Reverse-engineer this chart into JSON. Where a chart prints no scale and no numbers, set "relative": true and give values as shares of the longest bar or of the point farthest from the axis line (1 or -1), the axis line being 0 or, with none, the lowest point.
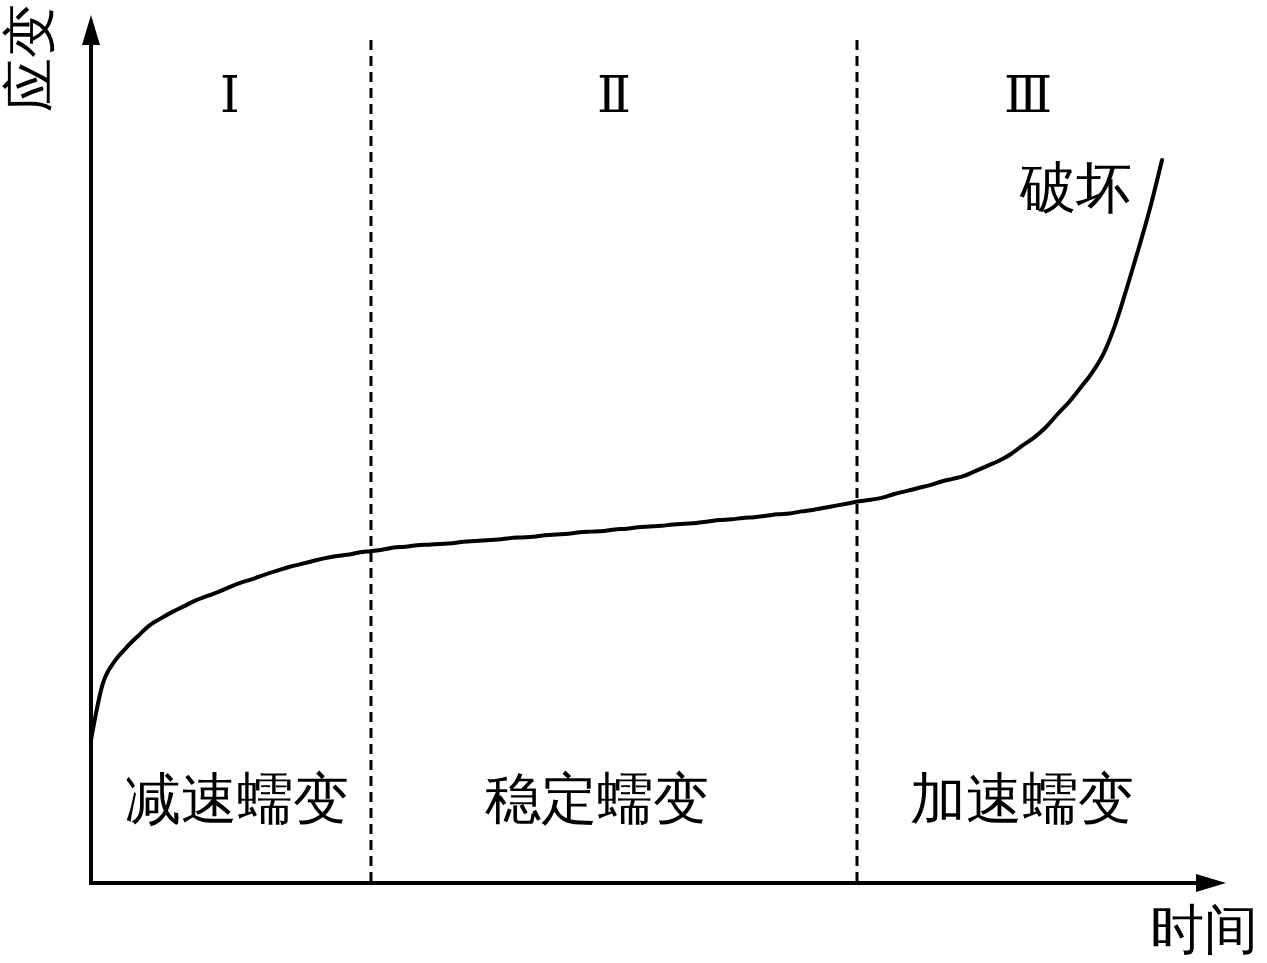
{
  "chart_data": {
    "type": "line",
    "relative": true,
    "xlabel": "时间",
    "ylabel": "应变",
    "line_style": "solid",
    "categories": [
      null,
      null,
      null,
      null,
      null,
      null,
      null,
      null,
      null,
      null,
      null,
      null,
      null,
      null,
      null,
      null,
      null,
      null,
      null,
      null,
      null,
      null,
      null,
      null,
      null,
      null,
      null,
      null,
      null,
      null,
      null,
      null,
      null,
      null,
      null,
      null,
      null,
      null,
      null,
      null,
      null,
      null,
      null,
      null,
      null,
      null,
      null,
      null,
      null,
      null,
      null,
      null,
      null,
      null,
      null,
      null,
      null,
      null,
      null,
      null,
      null,
      null,
      null,
      null,
      null,
      null,
      null,
      null,
      null,
      null,
      null,
      null,
      null,
      null,
      null,
      null,
      null,
      null,
      null,
      null,
      null,
      null,
      null,
      null,
      null,
      null,
      null,
      null,
      null,
      null,
      null,
      null,
      null
    ],
    "series": [
      {
        "color": "#000000",
        "values": [
          0.198,
          0.275,
          0.306,
          0.325,
          0.341,
          0.356,
          0.366,
          0.375,
          0.383,
          0.391,
          0.397,
          0.403,
          0.41,
          0.416,
          0.421,
          0.427,
          0.432,
          0.437,
          0.441,
          0.445,
          0.449,
          0.452,
          0.454,
          0.457,
          0.459,
          0.461,
          0.464,
          0.465,
          0.467,
          0.468,
          0.469,
          0.47,
          0.472,
          0.473,
          0.474,
          0.475,
          0.477,
          0.478,
          0.479,
          0.481,
          0.482,
          0.483,
          0.485,
          0.486,
          0.487,
          0.489,
          0.49,
          0.492,
          0.493,
          0.494,
          0.496,
          0.497,
          0.498,
          0.5,
          0.502,
          0.503,
          0.505,
          0.506,
          0.508,
          0.51,
          0.511,
          0.514,
          0.516,
          0.519,
          0.522,
          0.525,
          0.528,
          0.53,
          0.533,
          0.538,
          0.542,
          0.546,
          0.55,
          0.555,
          0.559,
          0.563,
          0.57,
          0.577,
          0.584,
          0.593,
          0.605,
          0.616,
          0.63,
          0.648,
          0.665,
          0.685,
          0.706,
          0.733,
          0.773,
          0.824,
          0.878,
          0.935,
          1
        ]
      }
    ],
    "annotations": [
      "Ⅰ",
      "Ⅱ",
      "Ⅲ",
      "破坏",
      "减速蠕变",
      "稳定蠕变",
      "加速蠕变"
    ]
  }
}
